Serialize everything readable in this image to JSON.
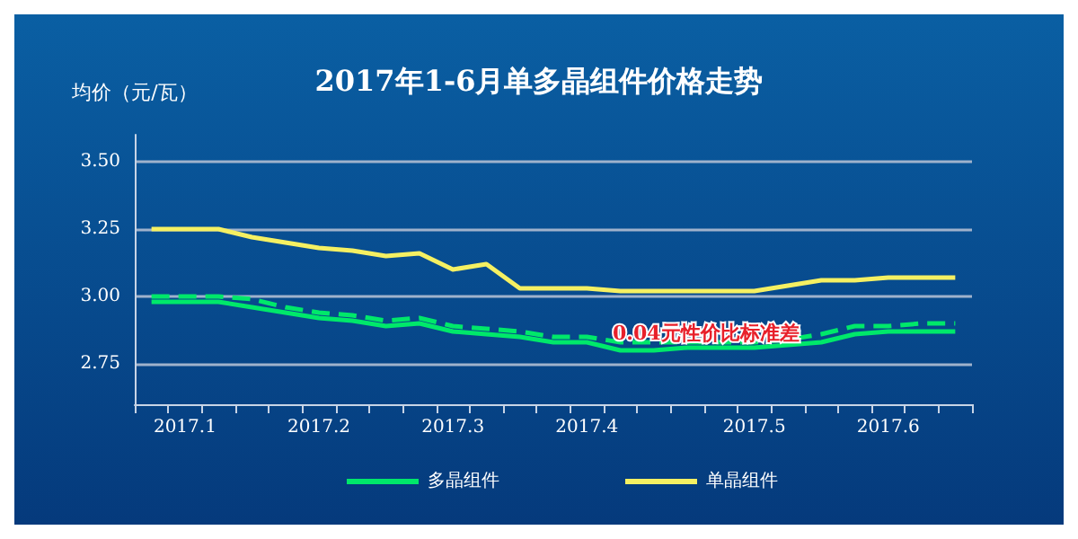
{
  "chart_data": {
    "type": "line",
    "title": "2017年1-6月单多晶组件价格走势",
    "ylabel": "均价（元/瓦）",
    "categories": [
      null,
      "2017.1",
      null,
      null,
      null,
      "2017.2",
      null,
      null,
      null,
      "2017.3",
      null,
      null,
      null,
      "2017.4",
      null,
      null,
      null,
      null,
      "2017.5",
      null,
      null,
      null,
      "2017.6",
      null,
      null
    ],
    "series": [
      {
        "name": "多晶组件",
        "color": "#00e86a",
        "values": [
          2.98,
          2.98,
          2.98,
          2.96,
          2.94,
          2.92,
          2.91,
          2.89,
          2.9,
          2.87,
          2.86,
          2.85,
          2.83,
          2.83,
          2.8,
          2.8,
          2.81,
          2.81,
          2.81,
          2.82,
          2.83,
          2.86,
          2.87,
          2.87,
          2.87
        ]
      },
      {
        "name": "单晶组件",
        "color": "#f5f062",
        "values": [
          3.25,
          3.25,
          3.25,
          3.22,
          3.2,
          3.18,
          3.17,
          3.15,
          3.16,
          3.1,
          3.12,
          3.03,
          3.03,
          3.03,
          3.02,
          3.02,
          3.02,
          3.02,
          3.02,
          3.04,
          3.06,
          3.06,
          3.07,
          3.07,
          3.07
        ]
      },
      {
        "color": "#00e86a",
        "line_style": "dashed",
        "values": [
          3.0,
          3.0,
          3.0,
          2.99,
          2.96,
          2.94,
          2.93,
          2.91,
          2.92,
          2.89,
          2.88,
          2.87,
          2.85,
          2.85,
          2.83,
          2.83,
          2.83,
          2.83,
          2.83,
          2.84,
          2.86,
          2.89,
          2.89,
          2.9,
          2.9
        ]
      }
    ],
    "annotations": [
      "0.04元性价比标准差"
    ],
    "ylim": [
      2.6,
      3.6
    ],
    "yticks": [
      2.75,
      {
        "value": 3,
        "label": "3.00"
      },
      3.25,
      {
        "value": 3.5,
        "label": "3.50"
      }
    ],
    "grid": "y",
    "legend": "bottom",
    "marker": "none",
    "line_style": "solid"
  }
}
